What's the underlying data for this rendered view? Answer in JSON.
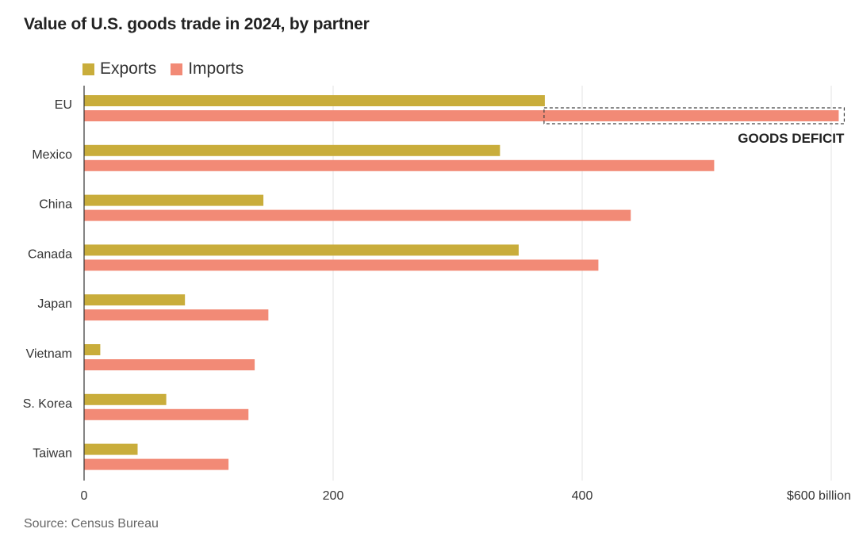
{
  "chart_data": {
    "type": "bar",
    "orientation": "horizontal",
    "title": "Value of U.S. goods trade in 2024, by partner",
    "categories": [
      "EU",
      "Mexico",
      "China",
      "Canada",
      "Japan",
      "Vietnam",
      "S. Korea",
      "Taiwan"
    ],
    "series": [
      {
        "name": "Exports",
        "color": "#c9ad3b",
        "values": [
          370,
          334,
          144,
          349,
          81,
          13,
          66,
          43
        ]
      },
      {
        "name": "Imports",
        "color": "#f28a76",
        "values": [
          606,
          506,
          439,
          413,
          148,
          137,
          132,
          116
        ]
      }
    ],
    "xlim": [
      0,
      600
    ],
    "x_ticks": [
      0,
      200,
      400,
      600
    ],
    "x_tick_labels": [
      "0",
      "200",
      "400",
      "$600 billion"
    ],
    "grid": "vertical",
    "legend_position": "top-left",
    "annotation": {
      "text": "GOODS DEFICIT",
      "category": "EU",
      "from": 370,
      "to": 606
    },
    "source": "Source: Census Bureau"
  }
}
